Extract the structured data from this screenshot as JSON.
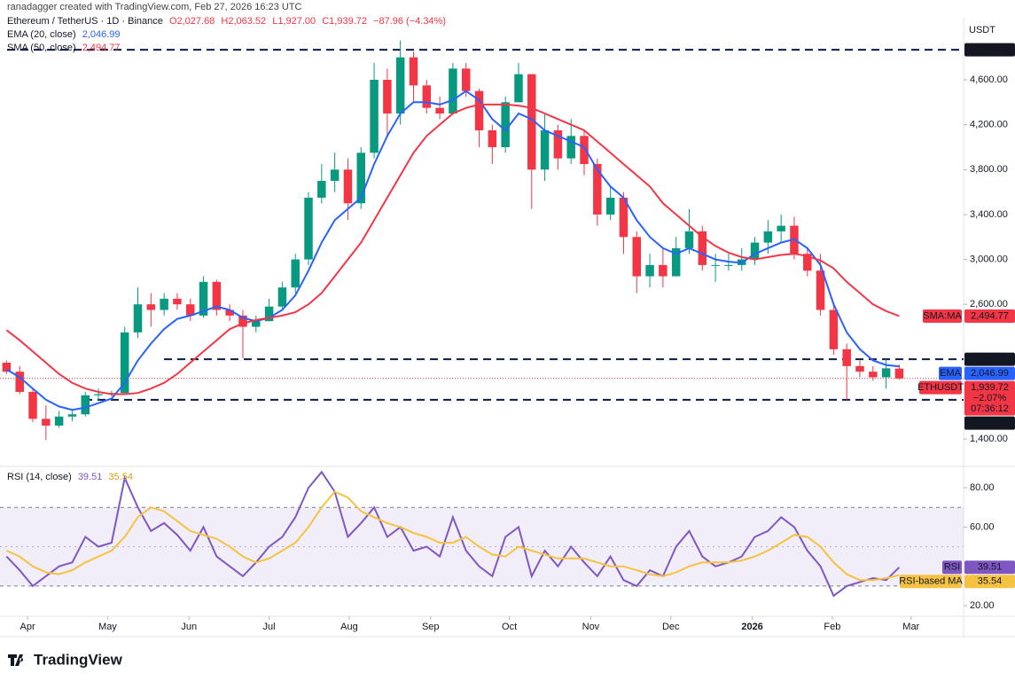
{
  "header": {
    "credit": "ranadagger created with TradingView.com, Feb 27, 2026 16:23 UTC",
    "logo": "TradingView"
  },
  "chart_data": [
    {
      "type": "candlestick",
      "title": "Ethereum / TetherUS · 1D · Binance",
      "ohlc_legend": [
        "O2,027.68",
        "H2,063.52",
        "L1,927.00",
        "C1,939.72",
        "−87.96 (−4.34%)"
      ],
      "axis_label": "USDT",
      "up_color": "#089981",
      "down_color": "#f23645",
      "open": [
        2080,
        2000,
        1820,
        1580,
        1520,
        1600,
        1620,
        1790,
        1800,
        1810,
        2350,
        2600,
        2550,
        2650,
        2600,
        2500,
        2800,
        2550,
        2500,
        2400,
        2450,
        2580,
        2750,
        3000,
        3550,
        3700,
        3800,
        3500,
        3950,
        4600,
        4300,
        4800,
        4550,
        4350,
        4300,
        4700,
        4500,
        4150,
        4000,
        4400,
        4650,
        3800,
        4150,
        3900,
        4100,
        3850,
        3400,
        3550,
        3200,
        2850,
        2950,
        2850,
        3100,
        3250,
        2950,
        2950,
        2950,
        3000,
        3150,
        3250,
        3300,
        3050,
        2900,
        2550,
        2200,
        2050,
        2000,
        1950,
        2027.68
      ],
      "high": [
        2100,
        2050,
        1850,
        1700,
        1650,
        1650,
        1820,
        1850,
        1830,
        2400,
        2750,
        2700,
        2700,
        2700,
        2650,
        2850,
        2820,
        2600,
        2550,
        2500,
        2650,
        2800,
        3050,
        3600,
        3850,
        3950,
        3900,
        4000,
        4750,
        4700,
        4950,
        4850,
        4600,
        4450,
        4750,
        4750,
        4520,
        4200,
        4450,
        4750,
        4650,
        4300,
        4200,
        4250,
        4150,
        3900,
        3650,
        3600,
        3250,
        3050,
        3100,
        3200,
        3450,
        3300,
        3050,
        3050,
        3100,
        3200,
        3350,
        3400,
        3380,
        3100,
        3050,
        2600,
        2250,
        2100,
        2050,
        2111,
        2063.52
      ],
      "low": [
        1980,
        1800,
        1550,
        1390,
        1500,
        1560,
        1600,
        1750,
        1780,
        1800,
        2300,
        2400,
        2500,
        2550,
        2450,
        2480,
        2500,
        2450,
        2120,
        2350,
        2450,
        2550,
        2700,
        2950,
        3500,
        3600,
        3350,
        3450,
        3900,
        4100,
        4200,
        4400,
        4300,
        4250,
        4300,
        4450,
        4000,
        3850,
        3950,
        4400,
        3450,
        3700,
        3800,
        3850,
        3750,
        3300,
        3350,
        3050,
        2700,
        2750,
        2750,
        2850,
        3050,
        2900,
        2800,
        2900,
        2900,
        2950,
        3050,
        3150,
        3000,
        2850,
        2500,
        2150,
        1750,
        1950,
        1920,
        1850,
        1927
      ],
      "close": [
        2000,
        1820,
        1580,
        1520,
        1600,
        1620,
        1790,
        1800,
        1810,
        2350,
        2600,
        2550,
        2650,
        2600,
        2500,
        2800,
        2550,
        2500,
        2400,
        2450,
        2580,
        2750,
        3000,
        3550,
        3700,
        3800,
        3500,
        3950,
        4600,
        4300,
        4800,
        4550,
        4350,
        4300,
        4700,
        4500,
        4150,
        4000,
        4400,
        4650,
        3800,
        4150,
        3900,
        4100,
        3850,
        3400,
        3550,
        3200,
        2850,
        2950,
        2850,
        3100,
        3250,
        2950,
        2950,
        2950,
        3000,
        3150,
        3250,
        3300,
        3050,
        2900,
        2550,
        2200,
        2050,
        2000,
        1950,
        2030,
        1939.72
      ],
      "series": [
        {
          "name": "EMA (20, close)",
          "tag": "EMA",
          "last_label": "2,046.99",
          "color": "#2962ff",
          "values": [
            2020,
            1950,
            1850,
            1750,
            1690,
            1660,
            1680,
            1720,
            1760,
            1900,
            2100,
            2250,
            2380,
            2470,
            2500,
            2540,
            2580,
            2550,
            2480,
            2450,
            2480,
            2550,
            2680,
            2900,
            3150,
            3350,
            3450,
            3550,
            3850,
            4100,
            4300,
            4400,
            4400,
            4380,
            4420,
            4500,
            4420,
            4250,
            4150,
            4300,
            4250,
            4150,
            4100,
            4050,
            4000,
            3800,
            3650,
            3550,
            3350,
            3200,
            3100,
            3050,
            3100,
            3050,
            3000,
            2980,
            2970,
            3050,
            3100,
            3150,
            3180,
            3100,
            2950,
            2600,
            2350,
            2200,
            2100,
            2060,
            2046.99
          ]
        },
        {
          "name": "SMA (50, close)",
          "tag": "SMA:MA",
          "last_label": "2,494.77",
          "color": "#f23645",
          "values": [
            2370,
            2280,
            2180,
            2080,
            1980,
            1900,
            1850,
            1820,
            1800,
            1800,
            1810,
            1850,
            1900,
            1980,
            2080,
            2180,
            2280,
            2380,
            2430,
            2460,
            2480,
            2500,
            2530,
            2600,
            2700,
            2850,
            3000,
            3150,
            3350,
            3550,
            3750,
            3950,
            4100,
            4200,
            4300,
            4350,
            4380,
            4380,
            4380,
            4370,
            4350,
            4300,
            4250,
            4200,
            4150,
            4050,
            3950,
            3850,
            3750,
            3650,
            3500,
            3400,
            3300,
            3200,
            3120,
            3060,
            3020,
            3000,
            3020,
            3040,
            3050,
            3030,
            2990,
            2920,
            2800,
            2700,
            2600,
            2540,
            2494.77
          ]
        }
      ],
      "levels": [
        {
          "value": 4868,
          "label": "4,868.00"
        },
        {
          "value": 2111,
          "label": "2,111.00"
        },
        {
          "value": 1750,
          "label": "1,750.00"
        }
      ],
      "last_price": {
        "name": "ETHUSDT",
        "value": 1939.72,
        "label": "1,939.72",
        "change": "−2.07%",
        "countdown": "07:36:12"
      },
      "ylim": [
        1164,
        5153
      ],
      "yticks": [
        {
          "value": 1400,
          "label": "1,400.00"
        },
        {
          "value": 2600,
          "label": "2,600.00"
        },
        {
          "value": 3000,
          "label": "3,000.00"
        },
        {
          "value": 3400,
          "label": "3,400.00"
        },
        {
          "value": 3800,
          "label": "3,800.00"
        },
        {
          "value": 4200,
          "label": "4,200.00"
        },
        {
          "value": 4600,
          "label": "4,600.00"
        }
      ],
      "xlim": [
        -0.5,
        72.9
      ],
      "xticks": [
        {
          "value": 1.6,
          "label": "Apr"
        },
        {
          "value": 7.7,
          "label": "May"
        },
        {
          "value": 13.9,
          "label": "Jun"
        },
        {
          "value": 20.0,
          "label": "Jul"
        },
        {
          "value": 26.1,
          "label": "Aug"
        },
        {
          "value": 32.3,
          "label": "Sep"
        },
        {
          "value": 38.3,
          "label": "Oct"
        },
        {
          "value": 44.5,
          "label": "Nov"
        },
        {
          "value": 50.6,
          "label": "Dec"
        },
        {
          "value": 56.8,
          "label": "2026"
        },
        {
          "value": 62.9,
          "label": "Feb"
        },
        {
          "value": 68.9,
          "label": "Mar"
        }
      ],
      "grid": false
    },
    {
      "type": "line",
      "title": "RSI (14, close)",
      "series": [
        {
          "name": "RSI",
          "last_label": "39.51",
          "color": "#7e57c2",
          "values": [
            45,
            38,
            30,
            35,
            40,
            42,
            55,
            50,
            52,
            85,
            70,
            58,
            62,
            56,
            48,
            60,
            45,
            40,
            35,
            42,
            50,
            55,
            65,
            80,
            88,
            78,
            55,
            62,
            70,
            55,
            60,
            48,
            50,
            45,
            65,
            48,
            40,
            35,
            55,
            60,
            35,
            48,
            40,
            50,
            42,
            35,
            45,
            33,
            30,
            38,
            35,
            50,
            58,
            45,
            40,
            42,
            45,
            55,
            58,
            65,
            60,
            48,
            40,
            25,
            30,
            32,
            34,
            33,
            39.51
          ]
        },
        {
          "name": "RSI-based MA",
          "last_label": "35.54",
          "color": "#f5c242",
          "values": [
            48,
            45,
            40,
            37,
            36,
            38,
            42,
            45,
            48,
            55,
            65,
            70,
            68,
            63,
            58,
            56,
            54,
            50,
            45,
            42,
            44,
            48,
            52,
            60,
            70,
            78,
            75,
            68,
            65,
            62,
            60,
            57,
            55,
            52,
            52,
            55,
            50,
            46,
            45,
            50,
            48,
            46,
            44,
            44,
            44,
            42,
            40,
            40,
            38,
            36,
            35,
            37,
            40,
            42,
            42,
            42,
            43,
            45,
            48,
            52,
            56,
            55,
            50,
            42,
            36,
            33,
            33,
            34,
            35.54
          ]
        }
      ],
      "band": [
        30,
        70
      ],
      "ylim": [
        14.6,
        90.4
      ],
      "yticks": [
        {
          "value": 20,
          "label": "20.00"
        },
        {
          "value": 60,
          "label": "60.00"
        },
        {
          "value": 80,
          "label": "80.00"
        }
      ]
    }
  ]
}
